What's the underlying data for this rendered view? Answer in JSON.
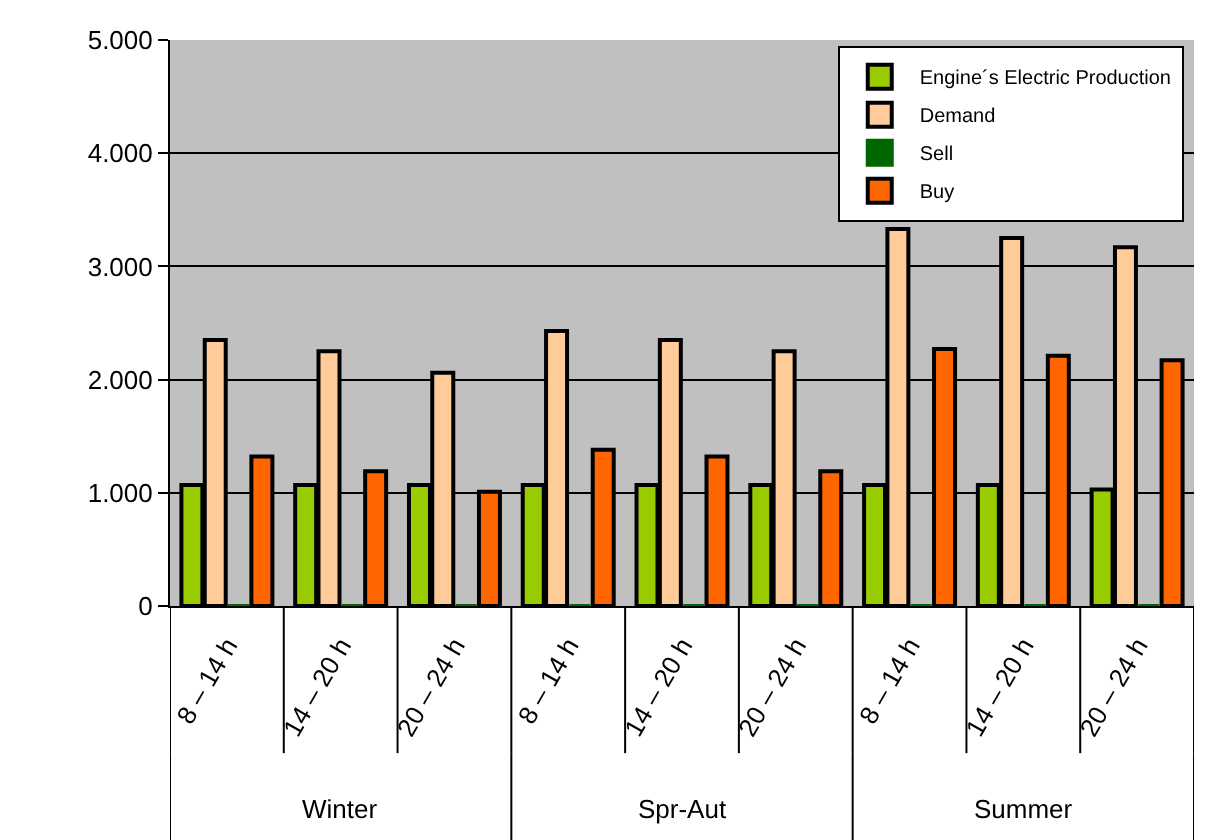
{
  "chart_data": {
    "type": "bar",
    "categories": [
      "8 – 14 h",
      "14 – 20 h",
      "20 – 24 h",
      "8 – 14 h",
      "14 – 20 h",
      "20 – 24 h",
      "8 – 14 h",
      "14 – 20 h",
      "20 – 24 h"
    ],
    "series": [
      {
        "name": "Engine´s Electric Production",
        "color": "#99cc00",
        "values": [
          1070,
          1070,
          1070,
          1070,
          1070,
          1070,
          1070,
          1070,
          1030
        ]
      },
      {
        "name": "Demand",
        "color": "#ffcc99",
        "values": [
          2350,
          2250,
          2060,
          2430,
          2350,
          2250,
          3330,
          3250,
          3170
        ]
      },
      {
        "name": "Sell",
        "color": "#006600",
        "values": [
          0,
          0,
          0,
          0,
          0,
          0,
          0,
          0,
          0
        ]
      },
      {
        "name": "Buy",
        "color": "#ff6600",
        "values": [
          1320,
          1190,
          1010,
          1380,
          1320,
          1190,
          2270,
          2210,
          2170
        ]
      }
    ],
    "ylim": [
      0,
      5000
    ],
    "yticks": [
      0,
      {
        "value": 1000,
        "label": "1.000"
      },
      {
        "value": 2000,
        "label": "2.000"
      },
      {
        "value": 3000,
        "label": "3.000"
      },
      {
        "value": 4000,
        "label": "4.000"
      },
      {
        "value": 5000,
        "label": "5.000"
      }
    ],
    "grid": "y",
    "legend": "top right",
    "annotations": [
      "Winter",
      "Spr-Aut",
      "Summer"
    ]
  }
}
